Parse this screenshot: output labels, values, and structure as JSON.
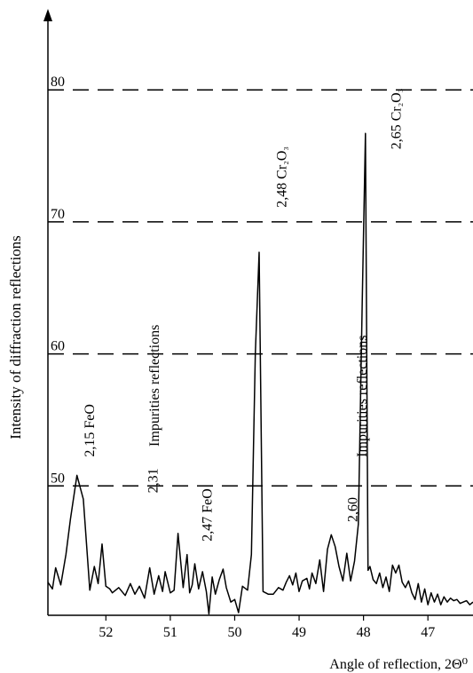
{
  "chart_data": {
    "type": "line",
    "xlabel": "Angle of reflection, 2Θ⁰",
    "ylabel": "Intensity of diffraction reflections",
    "xlim": [
      52.9,
      46.3
    ],
    "x_reversed": true,
    "ylim": [
      40.2,
      86
    ],
    "grid": {
      "y_dashed_lines": [
        50,
        60,
        70,
        80
      ]
    },
    "y_ticks": [
      "50",
      "60",
      "70",
      "80"
    ],
    "x_ticks": [
      "52",
      "51",
      "50",
      "49",
      "48",
      "47"
    ],
    "series": [
      {
        "x": [
          52.9,
          52.83,
          52.78,
          52.7,
          52.62,
          52.55,
          52.45,
          52.35,
          52.25,
          52.18,
          52.12,
          52.06,
          52.0,
          51.94,
          51.9,
          51.8,
          51.7,
          51.62,
          51.55,
          51.48,
          51.4,
          51.32,
          51.25,
          51.18,
          51.12,
          51.08,
          51.0,
          50.94,
          50.88,
          50.8,
          50.74,
          50.7,
          50.66,
          50.62,
          50.56,
          50.5,
          50.44,
          50.4,
          50.35,
          50.3,
          50.24,
          50.18,
          50.13,
          50.06,
          50.0,
          49.94,
          49.88,
          49.8,
          49.74,
          49.68,
          49.62,
          49.56,
          49.48,
          49.4,
          49.32,
          49.25,
          49.2,
          49.15,
          49.1,
          49.05,
          49.0,
          48.95,
          48.88,
          48.84,
          48.8,
          48.74,
          48.68,
          48.62,
          48.56,
          48.5,
          48.44,
          48.38,
          48.32,
          48.26,
          48.2,
          48.14,
          48.08,
          48.02,
          47.97,
          47.93,
          47.9,
          47.85,
          47.8,
          47.75,
          47.7,
          47.65,
          47.6,
          47.55,
          47.5,
          47.45,
          47.4,
          47.35,
          47.3,
          47.25,
          47.2,
          47.15,
          47.1,
          47.05,
          47.0,
          46.95,
          46.9,
          46.85,
          46.8,
          46.75,
          46.7,
          46.65,
          46.6,
          46.55,
          46.5,
          46.45,
          46.4,
          46.35,
          46.3
        ],
        "y": [
          42.7,
          42.2,
          43.8,
          42.5,
          44.8,
          47.5,
          50.8,
          49.0,
          42.1,
          43.9,
          42.6,
          45.6,
          42.4,
          42.2,
          41.9,
          42.3,
          41.7,
          42.6,
          41.8,
          42.4,
          41.5,
          43.8,
          41.8,
          43.2,
          42.0,
          43.5,
          41.9,
          42.1,
          46.4,
          42.3,
          44.8,
          41.9,
          42.5,
          44.1,
          42.2,
          43.5,
          42.0,
          40.3,
          43.1,
          41.8,
          42.9,
          43.7,
          42.3,
          41.2,
          41.4,
          40.4,
          42.4,
          42.1,
          44.8,
          60.0,
          67.7,
          42.0,
          41.8,
          41.8,
          42.3,
          42.1,
          42.7,
          43.2,
          42.5,
          43.4,
          42.0,
          42.8,
          43.0,
          42.2,
          43.4,
          42.6,
          44.4,
          42.0,
          45.2,
          46.3,
          45.4,
          43.9,
          42.8,
          44.9,
          42.8,
          44.3,
          47.1,
          64.0,
          76.7,
          43.6,
          43.9,
          42.9,
          42.6,
          43.4,
          42.3,
          43.1,
          42.0,
          44.0,
          43.4,
          44.0,
          42.7,
          42.3,
          42.8,
          41.9,
          41.4,
          42.6,
          41.2,
          42.2,
          41.0,
          41.9,
          41.2,
          41.8,
          41.0,
          41.6,
          41.2,
          41.5,
          41.3,
          41.4,
          41.1,
          41.2,
          41.3,
          41.0,
          41.2
        ]
      }
    ],
    "annotations": [
      {
        "text": "2,15 FeO",
        "x": 52.18,
        "y": 54.2,
        "rotation": -90
      },
      {
        "text": "Impurities reflections",
        "x": 51.18,
        "y": 57.6,
        "rotation": -90
      },
      {
        "text": "2,31",
        "x": 51.2,
        "y": 50.4,
        "rotation": -90
      },
      {
        "text": "2,47 FeO",
        "x": 50.36,
        "y": 47.8,
        "rotation": -90
      },
      {
        "text": "2,48 Cr₂O₃",
        "x": 49.2,
        "y": 73.4,
        "rotation": -90
      },
      {
        "text": "2,65 Cr₂O₃",
        "x": 47.42,
        "y": 77.8,
        "rotation": -90
      },
      {
        "text": "Impurities reflections",
        "x": 47.95,
        "y": 56.8,
        "rotation": -90
      },
      {
        "text": "2,60",
        "x": 48.1,
        "y": 48.2,
        "rotation": -90
      }
    ]
  }
}
